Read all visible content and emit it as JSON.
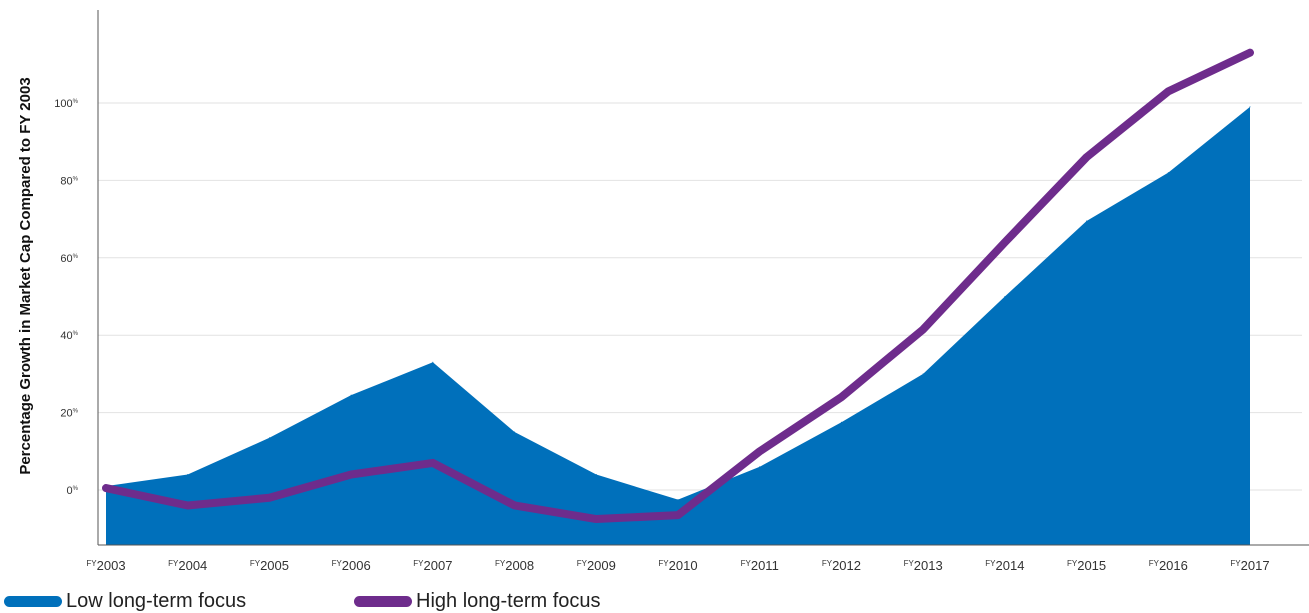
{
  "chart_data": {
    "type": "area",
    "ylabel": "Percentage Growth in Market Cap Compared to FY 2003",
    "x_prefix": "FY",
    "x": [
      "2003",
      "2004",
      "2005",
      "2006",
      "2007",
      "2008",
      "2009",
      "2010",
      "2011",
      "2012",
      "2013",
      "2014",
      "2015",
      "2016",
      "2017"
    ],
    "y_ticks": [
      0,
      20,
      40,
      60,
      80,
      100
    ],
    "y_tick_suffix": "%",
    "ylim": [
      -14,
      126
    ],
    "grid": true,
    "legend_position": "bottom-left",
    "series": [
      {
        "name": "Low long-term focus",
        "mark": "area",
        "color": "#0070BB",
        "values": [
          1,
          4,
          13.5,
          24.5,
          33,
          15,
          4,
          -2.5,
          6,
          17.5,
          30,
          50,
          69.5,
          82,
          99
        ]
      },
      {
        "name": "High long-term focus",
        "mark": "line",
        "color": "#6E2C8C",
        "values": [
          0.5,
          -4,
          -2,
          4,
          7,
          -4,
          -7.5,
          -6.5,
          10,
          24,
          41.5,
          64,
          86,
          103,
          113
        ]
      }
    ]
  }
}
